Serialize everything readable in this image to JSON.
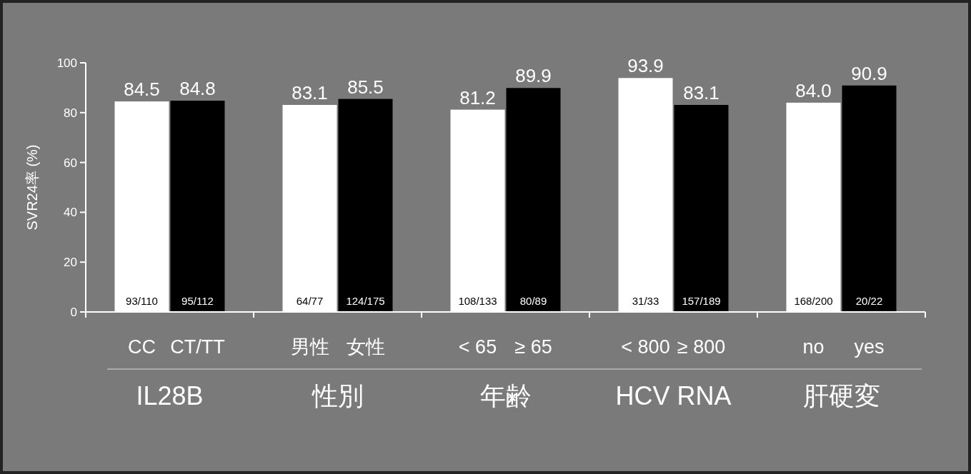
{
  "chart_data": {
    "type": "bar",
    "ylabel": "SVR24率 (%)",
    "categories": [
      "CC",
      "CT/TT",
      "男性",
      "女性",
      "< 65",
      "≥ 65",
      "< 800",
      "≥ 800",
      "no",
      "yes"
    ],
    "series": [
      {
        "values": [
          84.5,
          84.8,
          83.1,
          85.5,
          81.2,
          89.9,
          93.9,
          83.1,
          84.0,
          90.9
        ],
        "value_labels": [
          "84.5",
          "84.8",
          "83.1",
          "85.5",
          "81.2",
          "89.9",
          "93.9",
          "83.1",
          "84.0",
          "90.9"
        ],
        "colors": [
          "#ffffff",
          "#000000",
          "#ffffff",
          "#000000",
          "#ffffff",
          "#000000",
          "#ffffff",
          "#000000",
          "#ffffff",
          "#000000"
        ]
      }
    ],
    "ylim": [
      0,
      100
    ],
    "yticks": [
      0,
      20,
      40,
      60,
      80,
      100
    ],
    "annotations": [
      "IL28B",
      "性別",
      "年齢",
      "HCV RNA",
      "肝硬変",
      {
        "text": "93/110",
        "x": "CC",
        "y": 0
      },
      {
        "text": "95/112",
        "x": "CT/TT",
        "y": 0
      },
      {
        "text": "64/77",
        "x": "男性",
        "y": 0
      },
      {
        "text": "124/175",
        "x": "女性",
        "y": 0
      },
      {
        "text": "108/133",
        "x": "< 65",
        "y": 0
      },
      {
        "text": "80/89",
        "x": "≥ 65",
        "y": 0
      },
      {
        "text": "31/33",
        "x": "< 800",
        "y": 0
      },
      {
        "text": "157/189",
        "x": "≥ 800",
        "y": 0
      },
      {
        "text": "168/200",
        "x": "no",
        "y": 0
      },
      {
        "text": "20/22",
        "x": "yes",
        "y": 0
      }
    ]
  }
}
